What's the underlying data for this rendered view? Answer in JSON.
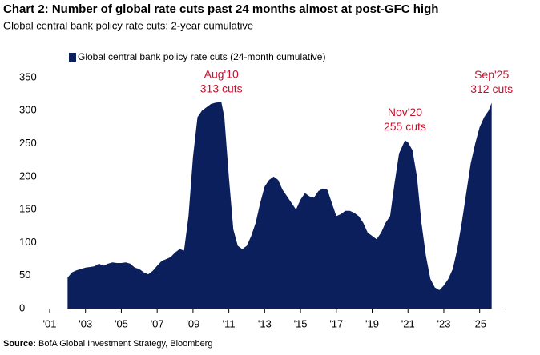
{
  "chart_data": {
    "type": "area",
    "title": "Chart 2: Number of global rate cuts past 24 months almost at post-GFC high",
    "subtitle": "Global central bank policy rate cuts: 2-year cumulative",
    "source_label": "Source:",
    "source": "BofA Global Investment Strategy, Bloomberg",
    "series": [
      {
        "name": "Global central bank policy rate cuts (24-month cumulative)",
        "color": "#0b1f5c",
        "x": [
          2002.0,
          2002.25,
          2002.5,
          2002.75,
          2003.0,
          2003.25,
          2003.5,
          2003.75,
          2004.0,
          2004.25,
          2004.5,
          2004.75,
          2005.0,
          2005.25,
          2005.5,
          2005.75,
          2006.0,
          2006.25,
          2006.5,
          2006.75,
          2007.0,
          2007.25,
          2007.5,
          2007.75,
          2008.0,
          2008.25,
          2008.5,
          2008.75,
          2009.0,
          2009.25,
          2009.5,
          2009.75,
          2010.0,
          2010.25,
          2010.58,
          2010.75,
          2011.0,
          2011.25,
          2011.5,
          2011.75,
          2012.0,
          2012.25,
          2012.5,
          2012.75,
          2013.0,
          2013.25,
          2013.5,
          2013.75,
          2014.0,
          2014.25,
          2014.5,
          2014.75,
          2015.0,
          2015.25,
          2015.5,
          2015.75,
          2016.0,
          2016.25,
          2016.5,
          2016.75,
          2017.0,
          2017.25,
          2017.5,
          2017.75,
          2018.0,
          2018.25,
          2018.5,
          2018.75,
          2019.0,
          2019.25,
          2019.5,
          2019.75,
          2020.0,
          2020.25,
          2020.5,
          2020.83,
          2021.0,
          2021.25,
          2021.5,
          2021.75,
          2022.0,
          2022.25,
          2022.5,
          2022.75,
          2023.0,
          2023.25,
          2023.5,
          2023.75,
          2024.0,
          2024.25,
          2024.5,
          2024.75,
          2025.0,
          2025.25,
          2025.5,
          2025.67
        ],
        "values": [
          47,
          55,
          58,
          60,
          62,
          63,
          64,
          68,
          65,
          68,
          70,
          69,
          69,
          70,
          68,
          62,
          60,
          55,
          52,
          57,
          65,
          72,
          75,
          78,
          85,
          90,
          88,
          140,
          230,
          290,
          300,
          305,
          310,
          312,
          313,
          290,
          200,
          120,
          95,
          90,
          95,
          110,
          130,
          160,
          185,
          195,
          200,
          195,
          180,
          170,
          160,
          150,
          165,
          175,
          170,
          168,
          178,
          182,
          180,
          160,
          140,
          143,
          148,
          148,
          145,
          140,
          130,
          115,
          110,
          105,
          115,
          130,
          140,
          190,
          235,
          255,
          252,
          240,
          200,
          130,
          80,
          45,
          32,
          28,
          35,
          45,
          60,
          90,
          130,
          175,
          220,
          250,
          275,
          290,
          300,
          312
        ]
      }
    ],
    "annotations": [
      {
        "label": "Aug'10",
        "text": "313 cuts",
        "x": 2010.58,
        "y": 313
      },
      {
        "label": "Nov'20",
        "text": "255 cuts",
        "x": 2020.83,
        "y": 255
      },
      {
        "label": "Sep'25",
        "text": "312 cuts",
        "x": 2025.67,
        "y": 312
      }
    ],
    "annotation_color": "#c8102e",
    "xlim": [
      2001,
      2026.4
    ],
    "ylim": [
      0,
      350
    ],
    "xticks": [
      {
        "value": 2001,
        "label": "'01"
      },
      {
        "value": 2003,
        "label": "'03"
      },
      {
        "value": 2005,
        "label": "'05"
      },
      {
        "value": 2007,
        "label": "'07"
      },
      {
        "value": 2009,
        "label": "'09"
      },
      {
        "value": 2011,
        "label": "'11"
      },
      {
        "value": 2013,
        "label": "'13"
      },
      {
        "value": 2015,
        "label": "'15"
      },
      {
        "value": 2017,
        "label": "'17"
      },
      {
        "value": 2019,
        "label": "'19"
      },
      {
        "value": 2021,
        "label": "'21"
      },
      {
        "value": 2023,
        "label": "'23"
      },
      {
        "value": 2025,
        "label": "'25"
      }
    ],
    "yticks": [
      0,
      50,
      100,
      150,
      200,
      250,
      300,
      350
    ],
    "grid": false
  }
}
